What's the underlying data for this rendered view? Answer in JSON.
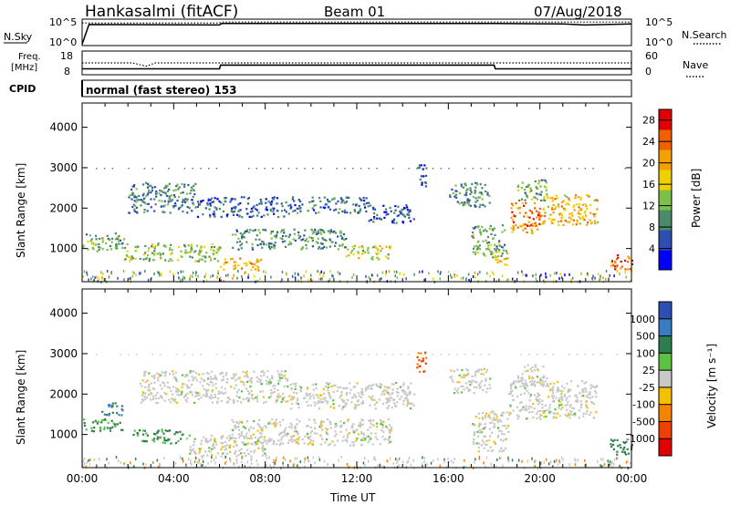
{
  "header": {
    "station": "Hankasalmi (fitACF)",
    "beam": "Beam 01",
    "date": "07/Aug/2018"
  },
  "aux_panels": {
    "nsky_label": "N.Sky",
    "nsearch_label": "N.Search",
    "nsky_ticks": [
      "10^5",
      "10^0"
    ],
    "freq_label_line1": "Freq.",
    "freq_label_line2": "[MHz]",
    "freq_ticks": [
      "18",
      "8"
    ],
    "nave_label": "Nave",
    "nave_ticks": [
      "60",
      "0"
    ],
    "cpid_label": "CPID",
    "cpid_text": "normal (fast stereo) 153"
  },
  "colors": {
    "power_scale": [
      "#0000ff",
      "#2d4fb3",
      "#4a8a6a",
      "#7cbf4a",
      "#f0d000",
      "#f5a000",
      "#f06000",
      "#e00000"
    ],
    "velocity_scale": [
      "#2d4fb3",
      "#3a7cc0",
      "#2e7d4f",
      "#5cc040",
      "#c8c8c8",
      "#f5c000",
      "#f58200",
      "#f04000",
      "#e00000"
    ]
  },
  "chart_data": [
    {
      "type": "line",
      "name": "N.Sky / N.Search",
      "x": [
        0,
        0.3,
        6,
        6.1,
        12,
        18,
        21,
        22,
        24
      ],
      "series": [
        {
          "name": "N.Sky",
          "values": [
            0.1,
            4.1,
            4.0,
            4.3,
            4.3,
            4.3,
            4.2,
            4.0,
            4.2
          ]
        },
        {
          "name": "N.Search",
          "values": [
            4.4,
            4.4,
            4.4,
            4.6,
            4.6,
            4.6,
            4.6,
            4.6,
            4.6
          ]
        }
      ],
      "ylim": [
        0,
        5
      ]
    },
    {
      "type": "line",
      "name": "Freq / Nave",
      "x": [
        0,
        2.2,
        2.8,
        3.2,
        6,
        6.05,
        18,
        18.05,
        24
      ],
      "series": [
        {
          "name": "Freq",
          "values": [
            10.3,
            10.3,
            10.3,
            10.3,
            10.3,
            12.0,
            12.0,
            10.3,
            10.3
          ]
        },
        {
          "name": "Nave",
          "values": [
            25,
            25,
            16,
            25,
            25,
            25,
            25,
            25,
            25
          ]
        }
      ],
      "ylim_freq": [
        8,
        18
      ],
      "ylim_nave": [
        0,
        60
      ]
    },
    {
      "type": "heatmap",
      "name": "Power",
      "xlabel": "",
      "ylabel": "Slant Range [km]",
      "xlim": [
        0,
        24
      ],
      "ylim": [
        180,
        4600
      ],
      "yticks": [
        1000,
        2000,
        3000,
        4000
      ],
      "colorbar_label": "Power [dB]",
      "colorbar_ticks": [
        4,
        8,
        12,
        16,
        20,
        24,
        28
      ],
      "colorbar_range": [
        0,
        30
      ],
      "regions": [
        {
          "t0": 0.0,
          "t1": 1.8,
          "r0": 950,
          "r1": 1400,
          "value": 12
        },
        {
          "t0": 1.8,
          "t1": 6.0,
          "r0": 700,
          "r1": 1150,
          "value": 14
        },
        {
          "t0": 6.0,
          "t1": 7.8,
          "r0": 480,
          "r1": 780,
          "value": 20
        },
        {
          "t0": 2.0,
          "t1": 5.0,
          "r0": 1900,
          "r1": 2650,
          "value": 9
        },
        {
          "t0": 5.0,
          "t1": 9.0,
          "r0": 1800,
          "r1": 2300,
          "value": 7
        },
        {
          "t0": 9.0,
          "t1": 12.5,
          "r0": 1900,
          "r1": 2300,
          "value": 8
        },
        {
          "t0": 12.5,
          "t1": 14.5,
          "r0": 1650,
          "r1": 2100,
          "value": 7
        },
        {
          "t0": 6.5,
          "t1": 11.5,
          "r0": 1000,
          "r1": 1500,
          "value": 10
        },
        {
          "t0": 11.5,
          "t1": 13.5,
          "r0": 750,
          "r1": 1100,
          "value": 16
        },
        {
          "t0": 14.6,
          "t1": 15.0,
          "r0": 2500,
          "r1": 3100,
          "value": 6
        },
        {
          "t0": 16.0,
          "t1": 17.8,
          "r0": 2050,
          "r1": 2650,
          "value": 10
        },
        {
          "t0": 17.0,
          "t1": 18.5,
          "r0": 800,
          "r1": 1600,
          "value": 12
        },
        {
          "t0": 18.0,
          "t1": 18.6,
          "r0": 600,
          "r1": 950,
          "value": 18
        },
        {
          "t0": 18.6,
          "t1": 20.0,
          "r0": 1400,
          "r1": 2150,
          "value": 24
        },
        {
          "t0": 20.0,
          "t1": 22.5,
          "r0": 1600,
          "r1": 2350,
          "value": 20
        },
        {
          "t0": 19.0,
          "t1": 20.3,
          "r0": 2200,
          "r1": 2750,
          "value": 12
        },
        {
          "t0": 23.0,
          "t1": 24.0,
          "r0": 500,
          "r1": 900,
          "value": 26
        }
      ]
    },
    {
      "type": "heatmap",
      "name": "Velocity",
      "xlabel": "Time UT",
      "ylabel": "Slant Range [km]",
      "xlim": [
        0,
        24
      ],
      "ylim": [
        180,
        4600
      ],
      "xtick_labels": [
        "00:00",
        "04:00",
        "08:00",
        "12:00",
        "16:00",
        "20:00",
        "00:00"
      ],
      "yticks": [
        1000,
        2000,
        3000,
        4000
      ],
      "colorbar_label": "Velocity [m s⁻¹]",
      "colorbar_ticks": [
        "1000",
        "500",
        "100",
        "25",
        "-25",
        "-100",
        "-500",
        "-1000"
      ],
      "regions": [
        {
          "t0": 0.0,
          "t1": 1.8,
          "r0": 1100,
          "r1": 1400,
          "value": 110
        },
        {
          "t0": 0.8,
          "t1": 1.8,
          "r0": 1500,
          "r1": 1800,
          "value": 300
        },
        {
          "t0": 2.2,
          "t1": 4.5,
          "r0": 800,
          "r1": 1150,
          "value": 120
        },
        {
          "t0": 4.5,
          "t1": 8.0,
          "r0": 480,
          "r1": 1000,
          "value": 0
        },
        {
          "t0": 2.5,
          "t1": 9.0,
          "r0": 1800,
          "r1": 2600,
          "value": 0
        },
        {
          "t0": 9.0,
          "t1": 14.5,
          "r0": 1650,
          "r1": 2300,
          "value": 0
        },
        {
          "t0": 6.5,
          "t1": 13.5,
          "r0": 750,
          "r1": 1400,
          "value": 0
        },
        {
          "t0": 14.6,
          "t1": 15.0,
          "r0": 2500,
          "r1": 3100,
          "value": -300
        },
        {
          "t0": 16.0,
          "t1": 17.8,
          "r0": 2050,
          "r1": 2650,
          "value": 0
        },
        {
          "t0": 17.0,
          "t1": 18.6,
          "r0": 600,
          "r1": 1600,
          "value": 0
        },
        {
          "t0": 18.6,
          "t1": 22.5,
          "r0": 1400,
          "r1": 2350,
          "value": 0
        },
        {
          "t0": 19.0,
          "t1": 20.3,
          "r0": 2200,
          "r1": 2750,
          "value": 0
        },
        {
          "t0": 23.0,
          "t1": 24.0,
          "r0": 500,
          "r1": 900,
          "value": 150
        }
      ]
    }
  ]
}
